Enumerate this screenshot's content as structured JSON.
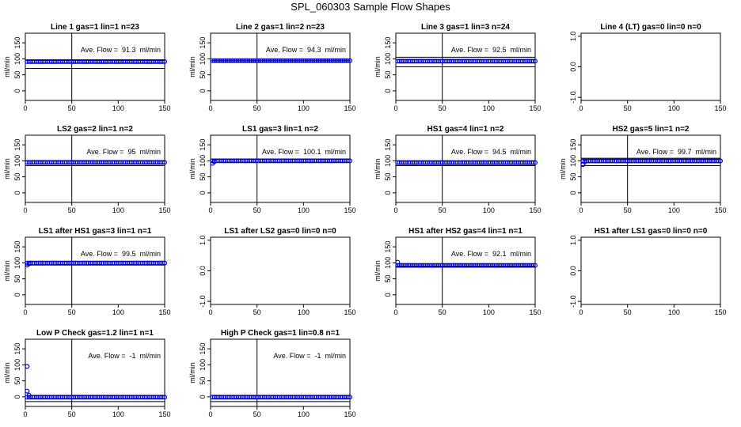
{
  "title": "SPL_060303  Sample Flow Shapes",
  "colors": {
    "points": "#0000cc",
    "axis": "#000000",
    "background": "#ffffff"
  },
  "chart_data": [
    {
      "type": "scatter",
      "title": "Line 1 gas=1 lin=1 n=23",
      "ylabel": "ml/min",
      "xlim": [
        0,
        150
      ],
      "ylim": [
        -30,
        180
      ],
      "xticks": [
        0,
        50,
        100,
        150
      ],
      "yticks": [
        0,
        50,
        100,
        150
      ],
      "vline": 50,
      "hlines": [
        70,
        95
      ],
      "annotation": "Ave. Flow =  91.3  ml/min",
      "points": {
        "x_start": 2,
        "x_end": 150,
        "y": 91.3,
        "count": 75,
        "first": []
      }
    },
    {
      "type": "scatter",
      "title": "Line 2 gas=1 lin=2 n=23",
      "ylabel": "ml/min",
      "xlim": [
        0,
        150
      ],
      "ylim": [
        -30,
        180
      ],
      "xticks": [
        0,
        50,
        100,
        150
      ],
      "yticks": [
        0,
        50,
        100,
        150
      ],
      "vline": 50,
      "hlines": [
        94
      ],
      "annotation": "Ave. Flow =  94.3  ml/min",
      "points": {
        "x_start": 2,
        "x_end": 150,
        "y": 94.3,
        "count": 75,
        "first": []
      }
    },
    {
      "type": "scatter",
      "title": "Line 3 gas=1 lin=3 n=24",
      "ylabel": "ml/min",
      "xlim": [
        0,
        150
      ],
      "ylim": [
        -30,
        180
      ],
      "xticks": [
        0,
        50,
        100,
        150
      ],
      "yticks": [
        0,
        50,
        100,
        150
      ],
      "vline": 50,
      "hlines": [
        105,
        75
      ],
      "annotation": "Ave. Flow =  92.5  ml/min",
      "points": {
        "x_start": 2,
        "x_end": 150,
        "y": 92.5,
        "count": 75,
        "first": []
      }
    },
    {
      "type": "scatter",
      "title": "Line 4 (LT) gas=0 lin=0 n=0",
      "ylabel": "",
      "xlim": [
        0,
        150
      ],
      "ylim": [
        -1.1,
        1.1
      ],
      "xticks": [
        0,
        50,
        100,
        150
      ],
      "yticks": [
        -1.0,
        0.0,
        1.0
      ],
      "ytick_labels": [
        "-1.0",
        "0.0",
        "1.0"
      ],
      "vline": null,
      "hlines": [],
      "annotation": "",
      "points": null
    },
    {
      "type": "scatter",
      "title": "LS2 gas=2 lin=1 n=2",
      "ylabel": "ml/min",
      "xlim": [
        0,
        150
      ],
      "ylim": [
        -30,
        180
      ],
      "xticks": [
        0,
        50,
        100,
        150
      ],
      "yticks": [
        0,
        50,
        100,
        150
      ],
      "vline": 50,
      "hlines": [
        100,
        85
      ],
      "annotation": "Ave. Flow =  95  ml/min",
      "points": {
        "x_start": 2,
        "x_end": 150,
        "y": 95,
        "count": 75,
        "first": []
      }
    },
    {
      "type": "scatter",
      "title": "LS1 gas=3 lin=1 n=2",
      "ylabel": "ml/min",
      "xlim": [
        0,
        150
      ],
      "ylim": [
        -30,
        180
      ],
      "xticks": [
        0,
        50,
        100,
        150
      ],
      "yticks": [
        0,
        50,
        100,
        150
      ],
      "vline": 50,
      "hlines": [
        105
      ],
      "annotation": "Ave. Flow =  100.1  ml/min",
      "points": {
        "x_start": 2,
        "x_end": 150,
        "y": 100.1,
        "count": 75,
        "first": [
          [
            2,
            92
          ],
          [
            4,
            97
          ]
        ]
      }
    },
    {
      "type": "scatter",
      "title": "HS1 gas=4 lin=1 n=2",
      "ylabel": "ml/min",
      "xlim": [
        0,
        150
      ],
      "ylim": [
        -30,
        180
      ],
      "xticks": [
        0,
        50,
        100,
        150
      ],
      "yticks": [
        0,
        50,
        100,
        150
      ],
      "vline": 50,
      "hlines": [
        100,
        85
      ],
      "annotation": "Ave. Flow =  94.5  ml/min",
      "points": {
        "x_start": 2,
        "x_end": 150,
        "y": 94.5,
        "count": 75,
        "first": []
      }
    },
    {
      "type": "scatter",
      "title": "HS2 gas=5 lin=1 n=2",
      "ylabel": "ml/min",
      "xlim": [
        0,
        150
      ],
      "ylim": [
        -30,
        180
      ],
      "xticks": [
        0,
        50,
        100,
        150
      ],
      "yticks": [
        0,
        50,
        100,
        150
      ],
      "vline": 50,
      "hlines": [
        108,
        85
      ],
      "annotation": "Ave. Flow =  99.7  ml/min",
      "points": {
        "x_start": 2,
        "x_end": 150,
        "y": 99.7,
        "count": 75,
        "first": [
          [
            2,
            88
          ],
          [
            4,
            96
          ]
        ]
      }
    },
    {
      "type": "scatter",
      "title": "LS1 after HS1 gas=3 lin=1 n=1",
      "ylabel": "ml/min",
      "xlim": [
        0,
        150
      ],
      "ylim": [
        -30,
        180
      ],
      "xticks": [
        0,
        50,
        100,
        150
      ],
      "yticks": [
        0,
        50,
        100,
        150
      ],
      "vline": 50,
      "hlines": [
        93
      ],
      "annotation": "Ave. Flow =  99.5  ml/min",
      "points": {
        "x_start": 2,
        "x_end": 150,
        "y": 99.5,
        "count": 75,
        "first": [
          [
            2,
            93
          ],
          [
            4,
            97
          ]
        ]
      }
    },
    {
      "type": "scatter",
      "title": "LS1 after LS2 gas=0 lin=0 n=0",
      "ylabel": "",
      "xlim": [
        0,
        150
      ],
      "ylim": [
        -1.1,
        1.1
      ],
      "xticks": [
        0,
        50,
        100,
        150
      ],
      "yticks": [
        -1.0,
        0.0,
        1.0
      ],
      "ytick_labels": [
        "-1.0",
        "0.0",
        "1.0"
      ],
      "vline": null,
      "hlines": [],
      "annotation": "",
      "points": null
    },
    {
      "type": "scatter",
      "title": "HS1 after HS2 gas=4 lin=1 n=1",
      "ylabel": "ml/min",
      "xlim": [
        0,
        150
      ],
      "ylim": [
        -30,
        180
      ],
      "xticks": [
        0,
        50,
        100,
        150
      ],
      "yticks": [
        0,
        50,
        100,
        150
      ],
      "vline": 50,
      "hlines": [
        90
      ],
      "annotation": "Ave. Flow =  92.1  ml/min",
      "points": {
        "x_start": 2,
        "x_end": 150,
        "y": 92.1,
        "count": 75,
        "first": [
          [
            2,
            102
          ]
        ]
      }
    },
    {
      "type": "scatter",
      "title": "HS1 after LS1 gas=0 lin=0 n=0",
      "ylabel": "",
      "xlim": [
        0,
        150
      ],
      "ylim": [
        -1.1,
        1.1
      ],
      "xticks": [
        0,
        50,
        100,
        150
      ],
      "yticks": [
        -1.0,
        0.0,
        1.0
      ],
      "ytick_labels": [
        "-1.0",
        "0.0",
        "1.0"
      ],
      "vline": null,
      "hlines": [],
      "annotation": "",
      "points": null
    },
    {
      "type": "scatter",
      "title": "Low P Check gas=1.2 lin=1 n=1",
      "ylabel": "ml/min",
      "xlim": [
        0,
        150
      ],
      "ylim": [
        -30,
        180
      ],
      "xticks": [
        0,
        50,
        100,
        150
      ],
      "yticks": [
        0,
        50,
        100,
        150
      ],
      "vline": 50,
      "hlines": [
        -15
      ],
      "annotation": "Ave. Flow =  -1  ml/min",
      "points": {
        "x_start": 2,
        "x_end": 150,
        "y": -1,
        "count": 75,
        "first": [
          [
            2,
            95
          ],
          [
            2,
            18
          ],
          [
            4,
            5
          ]
        ]
      }
    },
    {
      "type": "scatter",
      "title": "High P Check gas=1 lin=0.8 n=1",
      "ylabel": "ml/min",
      "xlim": [
        0,
        150
      ],
      "ylim": [
        -30,
        180
      ],
      "xticks": [
        0,
        50,
        100,
        150
      ],
      "yticks": [
        0,
        50,
        100,
        150
      ],
      "vline": 50,
      "hlines": [
        -15
      ],
      "annotation": "Ave. Flow =  -1  ml/min",
      "points": {
        "x_start": 2,
        "x_end": 150,
        "y": -1,
        "count": 75,
        "first": []
      }
    }
  ]
}
